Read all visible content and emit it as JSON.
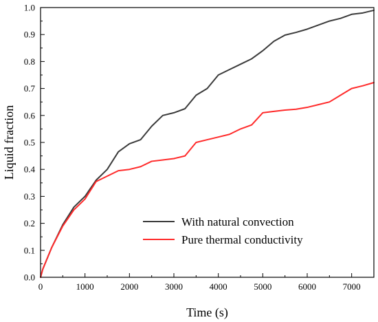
{
  "chart_data": {
    "type": "line",
    "xlabel": "Time (s)",
    "ylabel": "Liquid fraction",
    "xlim": [
      0,
      7500
    ],
    "ylim": [
      0,
      1.0
    ],
    "xticks": [
      0,
      1000,
      2000,
      3000,
      4000,
      5000,
      6000,
      7000
    ],
    "yticks": [
      0.0,
      0.1,
      0.2,
      0.3,
      0.4,
      0.5,
      0.6,
      0.7,
      0.8,
      0.9,
      1.0
    ],
    "xtick_labels": [
      "0",
      "1000",
      "2000",
      "3000",
      "4000",
      "5000",
      "6000",
      "7000"
    ],
    "ytick_labels": [
      "0.0",
      "0.1",
      "0.2",
      "0.3",
      "0.4",
      "0.5",
      "0.6",
      "0.7",
      "0.8",
      "0.9",
      "1.0"
    ],
    "legend_position": "lower-right",
    "series": [
      {
        "name": "With natural convection",
        "color": "#3a3a3a",
        "x": [
          0,
          50,
          250,
          500,
          750,
          1000,
          1250,
          1500,
          1750,
          2000,
          2250,
          2500,
          2750,
          3000,
          3250,
          3500,
          3750,
          4000,
          4250,
          4500,
          4750,
          5000,
          5250,
          5500,
          5750,
          6000,
          6250,
          6500,
          6750,
          7000,
          7250,
          7500
        ],
        "y": [
          0.0,
          0.03,
          0.11,
          0.195,
          0.26,
          0.3,
          0.36,
          0.4,
          0.465,
          0.495,
          0.51,
          0.56,
          0.6,
          0.61,
          0.625,
          0.675,
          0.7,
          0.75,
          0.77,
          0.79,
          0.81,
          0.84,
          0.875,
          0.898,
          0.908,
          0.92,
          0.935,
          0.95,
          0.96,
          0.975,
          0.98,
          0.99
        ]
      },
      {
        "name": "Pure thermal conductivity",
        "color": "#ff2a2a",
        "x": [
          0,
          50,
          250,
          500,
          750,
          1000,
          1250,
          1500,
          1750,
          2000,
          2250,
          2500,
          2750,
          3000,
          3250,
          3500,
          3750,
          4000,
          4250,
          4500,
          4750,
          5000,
          5250,
          5500,
          5750,
          6000,
          6250,
          6500,
          6750,
          7000,
          7250,
          7500
        ],
        "y": [
          0.0,
          0.03,
          0.11,
          0.19,
          0.25,
          0.29,
          0.355,
          0.375,
          0.395,
          0.4,
          0.41,
          0.43,
          0.435,
          0.44,
          0.45,
          0.5,
          0.51,
          0.52,
          0.53,
          0.55,
          0.565,
          0.61,
          0.615,
          0.62,
          0.623,
          0.63,
          0.64,
          0.65,
          0.675,
          0.7,
          0.71,
          0.722
        ]
      }
    ]
  }
}
